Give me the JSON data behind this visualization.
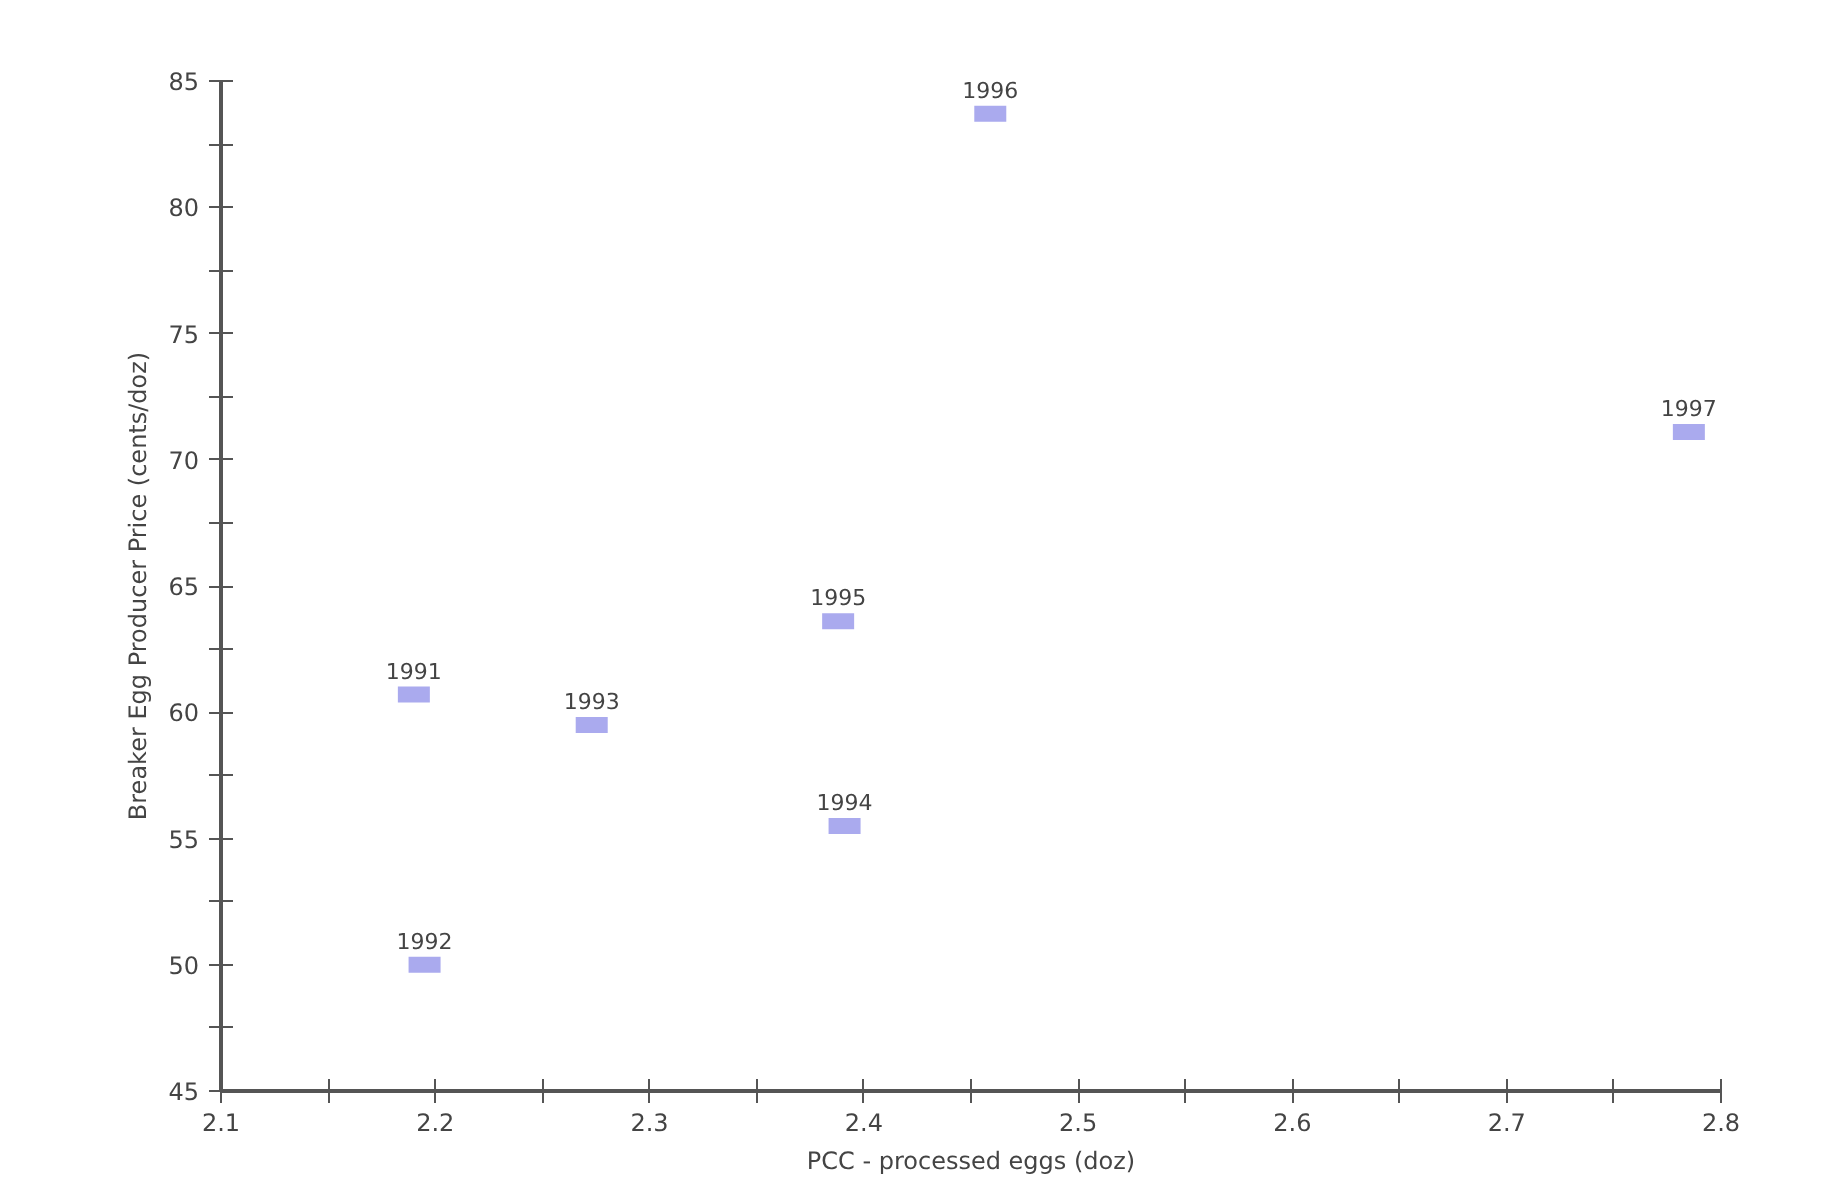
{
  "chart_data": {
    "type": "scatter",
    "xlabel": "PCC - processed eggs (doz)",
    "ylabel": "Breaker Egg Producer Price (cents/doz)",
    "x": [
      2.19,
      2.195,
      2.273,
      2.391,
      2.388,
      2.459,
      2.785
    ],
    "series": [
      {
        "color": "#aaaaee",
        "values": [
          60.7,
          50.0,
          59.5,
          55.5,
          63.6,
          83.7,
          71.1
        ]
      }
    ],
    "annotations": [
      {
        "text": "1991",
        "x": 2.19,
        "y": 60.7
      },
      {
        "text": "1992",
        "x": 2.195,
        "y": 50.0
      },
      {
        "text": "1993",
        "x": 2.273,
        "y": 59.5
      },
      {
        "text": "1994",
        "x": 2.391,
        "y": 55.5
      },
      {
        "text": "1995",
        "x": 2.388,
        "y": 63.6
      },
      {
        "text": "1996",
        "x": 2.459,
        "y": 83.7
      },
      {
        "text": "1997",
        "x": 2.785,
        "y": 71.1
      }
    ],
    "xlim": [
      2.1,
      2.8
    ],
    "ylim": [
      45,
      85
    ],
    "xticks": [
      2.1,
      {
        "value": 2.15,
        "label": null
      },
      2.2,
      {
        "value": 2.25,
        "label": null
      },
      2.3,
      {
        "value": 2.35,
        "label": null
      },
      2.4,
      {
        "value": 2.45,
        "label": null
      },
      2.5,
      {
        "value": 2.55,
        "label": null
      },
      2.6,
      {
        "value": 2.65,
        "label": null
      },
      2.7,
      {
        "value": 2.75,
        "label": null
      },
      2.8
    ],
    "yticks": [
      45,
      {
        "value": 47.5,
        "label": null
      },
      50,
      {
        "value": 52.5,
        "label": null
      },
      55,
      {
        "value": 57.5,
        "label": null
      },
      60,
      {
        "value": 62.5,
        "label": null
      },
      65,
      {
        "value": 67.5,
        "label": null
      },
      70,
      {
        "value": 72.5,
        "label": null
      },
      75,
      {
        "value": 77.5,
        "label": null
      },
      80,
      {
        "value": 82.5,
        "label": null
      },
      85
    ],
    "marker": "square",
    "grid": false
  }
}
